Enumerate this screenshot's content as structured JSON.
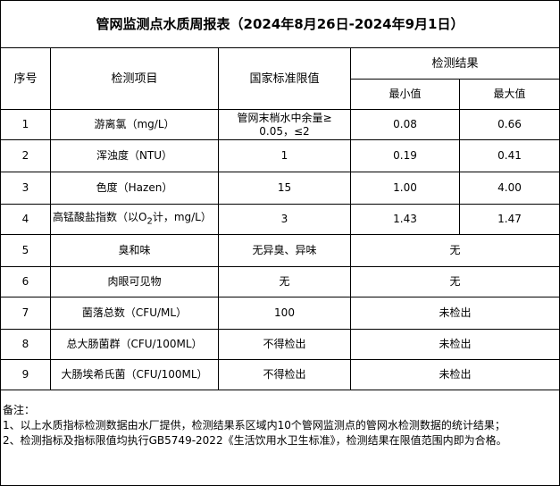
{
  "title": "管网监测点水质周报表（2024年8月26日-2024年9月1日）",
  "headers": {
    "index": "序号",
    "item": "检测项目",
    "standard": "国家标准限值",
    "result": "检测结果",
    "min": "最小值",
    "max": "最大值"
  },
  "rows": [
    {
      "index": "1",
      "item": "游离氯（mg/L）",
      "standard_line1": "管网末梢水中余量≥",
      "standard_line2": "0.05，≤2",
      "min": "0.08",
      "max": "0.66"
    },
    {
      "index": "2",
      "item": "浑浊度（NTU）",
      "standard": "1",
      "min": "0.19",
      "max": "0.41"
    },
    {
      "index": "3",
      "item": "色度（Hazen）",
      "standard": "15",
      "min": "1.00",
      "max": "4.00"
    },
    {
      "index": "4",
      "item_pre": "高锰酸盐指数（以O",
      "item_sub": "2",
      "item_post": "计，mg/L）",
      "standard": "3",
      "min": "1.43",
      "max": "1.47"
    },
    {
      "index": "5",
      "item": "臭和味",
      "standard": "无异臭、异味",
      "result": "无"
    },
    {
      "index": "6",
      "item": "肉眼可见物",
      "standard": "无",
      "result": "无"
    },
    {
      "index": "7",
      "item": "菌落总数（CFU/ML）",
      "standard": "100",
      "result": "未检出"
    },
    {
      "index": "8",
      "item": "总大肠菌群（CFU/100ML）",
      "standard": "不得检出",
      "result": "未检出"
    },
    {
      "index": "9",
      "item": "大肠埃希氏菌（CFU/100ML）",
      "standard": "不得检出",
      "result": "未检出"
    }
  ],
  "notes": {
    "label": "备注：",
    "line1": "1、以上水质指标检测数据由水厂提供，检测结果系区域内10个管网监测点的管网水检测数据的统计结果；",
    "line2": "2、检测指标及指标限值均执行GB5749-2022《生活饮用水卫生标准》，检测结果在限值范围内即为合格。"
  }
}
